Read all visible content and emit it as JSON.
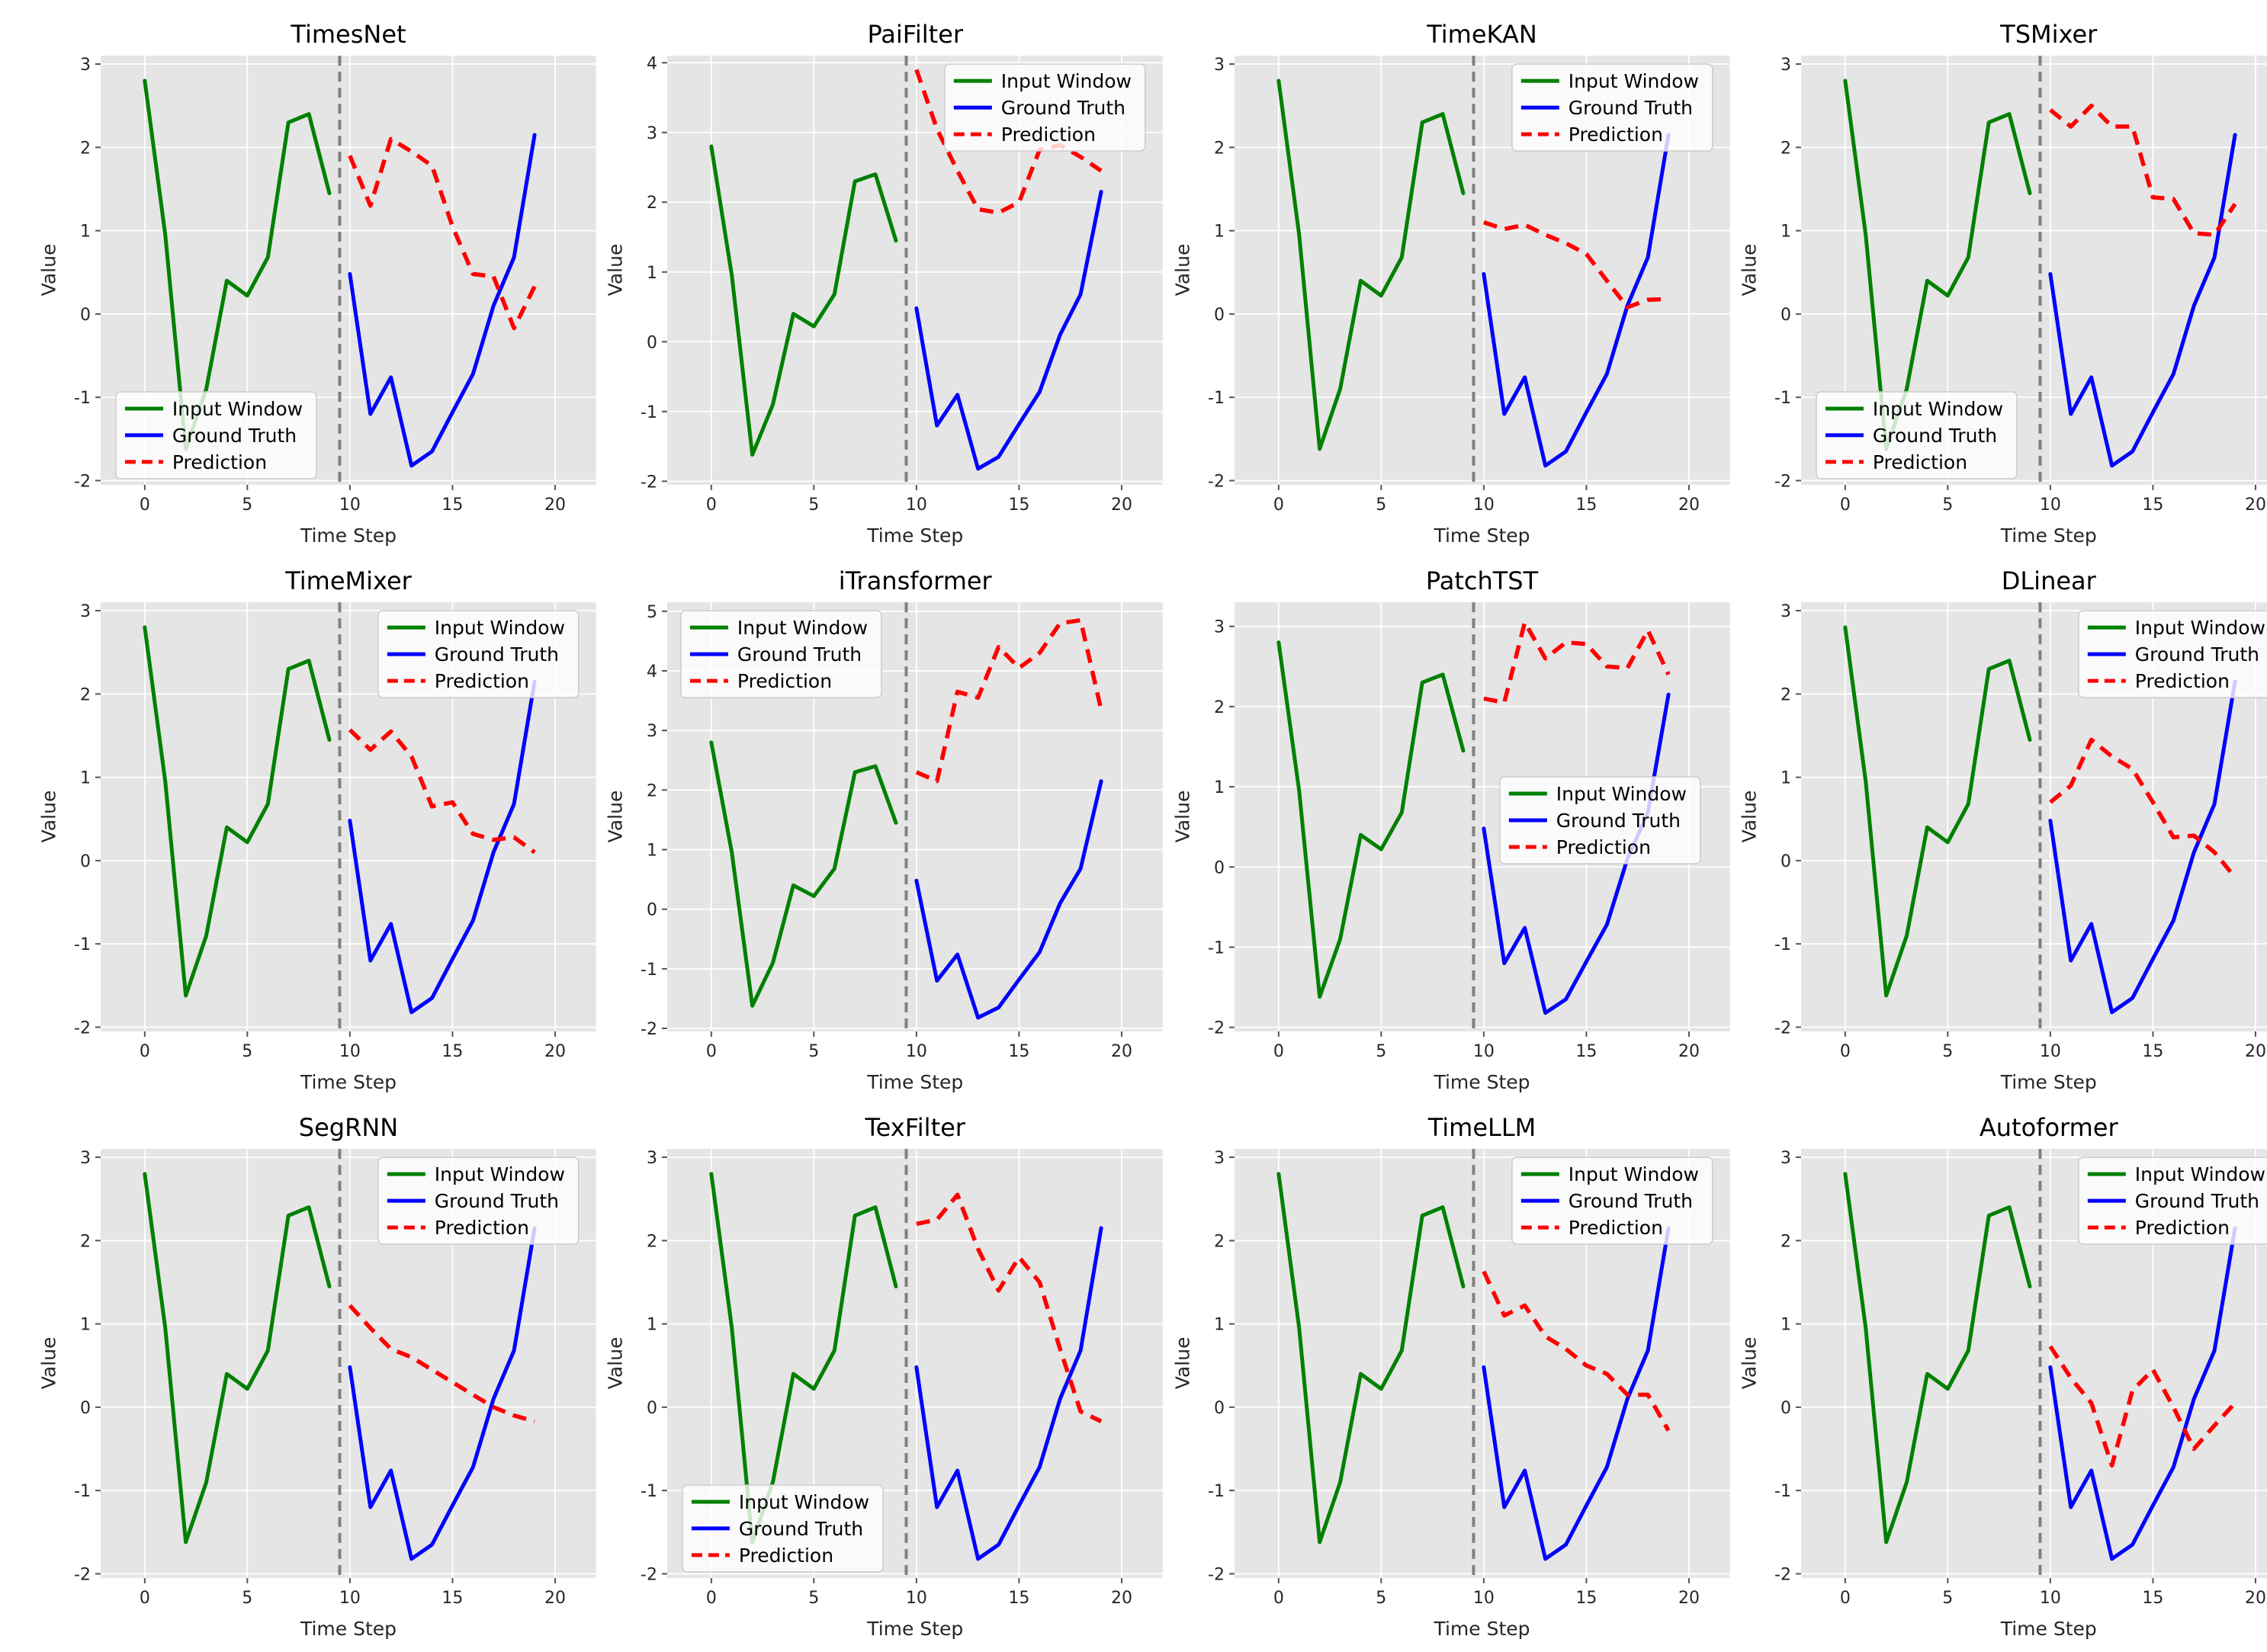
{
  "figure": {
    "background": "#ffffff"
  },
  "chart_data": {
    "type": "line",
    "layout": {
      "rows": 3,
      "cols": 4
    },
    "xlabel": "Time Step",
    "ylabel": "Value",
    "xticks": [
      0,
      5,
      10,
      15,
      20
    ],
    "xlim": [
      -2.15,
      22
    ],
    "vline_x": 9.5,
    "grid": true,
    "x_input": [
      0,
      1,
      2,
      3,
      4,
      5,
      6,
      7,
      8,
      9
    ],
    "x_future": [
      10,
      11,
      12,
      13,
      14,
      15,
      16,
      17,
      18,
      19
    ],
    "series_shared": {
      "input_window": [
        2.8,
        0.95,
        -1.62,
        -0.9,
        0.4,
        0.22,
        0.68,
        2.3,
        2.4,
        1.45
      ],
      "ground_truth": [
        0.48,
        -1.2,
        -0.76,
        -1.82,
        -1.65,
        -1.18,
        -0.72,
        0.1,
        0.68,
        2.15
      ]
    },
    "legend_entries": [
      "Input Window",
      "Ground Truth",
      "Prediction"
    ],
    "colors": {
      "input_window": "#008000",
      "ground_truth": "#0000ff",
      "prediction": "#ff0000",
      "axes_background": "#e5e5e5",
      "grid": "#ffffff",
      "vline": "#808080",
      "text": "#262626",
      "title": "#000000",
      "legend_background": "rgba(255,255,255,0.8)",
      "legend_border": "#cccccc"
    },
    "subplots": [
      {
        "title": "TimesNet",
        "legend_pos": "lower-left",
        "yticks": [
          3,
          2,
          1,
          0,
          -1,
          -2
        ],
        "ylim": [
          -2.05,
          3.1
        ],
        "prediction": [
          1.9,
          1.3,
          2.1,
          1.95,
          1.78,
          1.05,
          0.48,
          0.45,
          -0.17,
          0.33
        ]
      },
      {
        "title": "PaiFilter",
        "legend_pos": "upper-right",
        "yticks": [
          4,
          3,
          2,
          1,
          0,
          -1,
          -2
        ],
        "ylim": [
          -2.05,
          4.1
        ],
        "prediction": [
          3.9,
          3.05,
          2.45,
          1.9,
          1.85,
          2.0,
          2.75,
          2.82,
          2.65,
          2.45
        ]
      },
      {
        "title": "TimeKAN",
        "legend_pos": "upper-right",
        "yticks": [
          3,
          2,
          1,
          0,
          -1,
          -2
        ],
        "ylim": [
          -2.05,
          3.1
        ],
        "prediction": [
          1.1,
          1.02,
          1.07,
          0.95,
          0.85,
          0.72,
          0.4,
          0.08,
          0.17,
          0.18
        ]
      },
      {
        "title": "TSMixer",
        "legend_pos": "lower-left",
        "yticks": [
          3,
          2,
          1,
          0,
          -1,
          -2
        ],
        "ylim": [
          -2.05,
          3.1
        ],
        "prediction": [
          2.45,
          2.25,
          2.5,
          2.25,
          2.25,
          1.4,
          1.38,
          0.97,
          0.95,
          1.32
        ]
      },
      {
        "title": "TimeMixer",
        "legend_pos": "upper-right",
        "yticks": [
          3,
          2,
          1,
          0,
          -1,
          -2
        ],
        "ylim": [
          -2.05,
          3.1
        ],
        "prediction": [
          1.57,
          1.33,
          1.55,
          1.25,
          0.65,
          0.7,
          0.32,
          0.25,
          0.28,
          0.1
        ]
      },
      {
        "title": "iTransformer",
        "legend_pos": "upper-left",
        "yticks": [
          5,
          4,
          3,
          2,
          1,
          0,
          -1,
          -2
        ],
        "ylim": [
          -2.05,
          5.15
        ],
        "prediction": [
          2.3,
          2.15,
          3.65,
          3.55,
          4.4,
          4.05,
          4.3,
          4.8,
          4.85,
          3.35
        ]
      },
      {
        "title": "PatchTST",
        "legend_pos": "center-right",
        "yticks": [
          3,
          2,
          1,
          0,
          -1,
          -2
        ],
        "ylim": [
          -2.05,
          3.3
        ],
        "prediction": [
          2.1,
          2.05,
          3.05,
          2.6,
          2.8,
          2.78,
          2.5,
          2.48,
          2.95,
          2.4
        ]
      },
      {
        "title": "DLinear",
        "legend_pos": "upper-right",
        "yticks": [
          3,
          2,
          1,
          0,
          -1,
          -2
        ],
        "ylim": [
          -2.05,
          3.1
        ],
        "prediction": [
          0.7,
          0.9,
          1.45,
          1.25,
          1.1,
          0.7,
          0.28,
          0.3,
          0.1,
          -0.2
        ]
      },
      {
        "title": "SegRNN",
        "legend_pos": "upper-right",
        "yticks": [
          3,
          2,
          1,
          0,
          -1,
          -2
        ],
        "ylim": [
          -2.05,
          3.1
        ],
        "prediction": [
          1.22,
          0.95,
          0.7,
          0.6,
          0.45,
          0.3,
          0.15,
          0.0,
          -0.1,
          -0.17
        ]
      },
      {
        "title": "TexFilter",
        "legend_pos": "lower-left",
        "yticks": [
          3,
          2,
          1,
          0,
          -1,
          -2
        ],
        "ylim": [
          -2.05,
          3.1
        ],
        "prediction": [
          2.2,
          2.25,
          2.55,
          1.9,
          1.4,
          1.8,
          1.5,
          0.7,
          -0.05,
          -0.17
        ]
      },
      {
        "title": "TimeLLM",
        "legend_pos": "upper-right",
        "yticks": [
          3,
          2,
          1,
          0,
          -1,
          -2
        ],
        "ylim": [
          -2.05,
          3.1
        ],
        "prediction": [
          1.63,
          1.1,
          1.22,
          0.85,
          0.7,
          0.5,
          0.4,
          0.15,
          0.15,
          -0.28
        ]
      },
      {
        "title": "Autoformer",
        "legend_pos": "upper-right",
        "yticks": [
          3,
          2,
          1,
          0,
          -1,
          -2
        ],
        "ylim": [
          -2.05,
          3.1
        ],
        "prediction": [
          0.73,
          0.35,
          0.05,
          -0.7,
          0.2,
          0.45,
          0.0,
          -0.5,
          -0.22,
          0.05
        ]
      }
    ]
  }
}
